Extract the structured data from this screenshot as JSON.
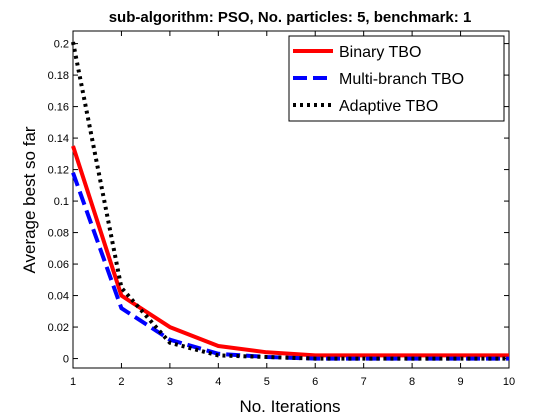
{
  "chart_data": {
    "type": "line",
    "title": "sub-algorithm: PSO, No. particles: 5, benchmark: 1",
    "xlabel": "No. Iterations",
    "ylabel": "Average best so far",
    "xlim": [
      1,
      10
    ],
    "ylim": [
      -0.006,
      0.208
    ],
    "xticks": [
      "1",
      "2",
      "3",
      "4",
      "5",
      "6",
      "7",
      "8",
      "9",
      "10"
    ],
    "yticks": [
      "0",
      "0.02",
      "0.04",
      "0.06",
      "0.08",
      "0.1",
      "0.12",
      "0.14",
      "0.16",
      "0.18",
      "0.2"
    ],
    "grid": false,
    "legend_position": "top-right",
    "x": [
      1,
      2,
      3,
      4,
      5,
      6,
      7,
      8,
      9,
      10
    ],
    "series": [
      {
        "name": "Binary TBO",
        "color": "#ff0000",
        "dash": "solid",
        "values": [
          0.135,
          0.04,
          0.02,
          0.008,
          0.004,
          0.002,
          0.002,
          0.002,
          0.002,
          0.002
        ]
      },
      {
        "name": "Multi-branch TBO",
        "color": "#0000ff",
        "dash": "dashed",
        "values": [
          0.118,
          0.032,
          0.012,
          0.003,
          0.001,
          0.0,
          0.0,
          0.0,
          0.0,
          0.0
        ]
      },
      {
        "name": "Adaptive TBO",
        "color": "#000000",
        "dash": "dotted",
        "values": [
          0.201,
          0.045,
          0.01,
          0.002,
          0.001,
          0.0,
          0.0,
          0.0,
          0.0,
          0.0
        ]
      }
    ]
  }
}
